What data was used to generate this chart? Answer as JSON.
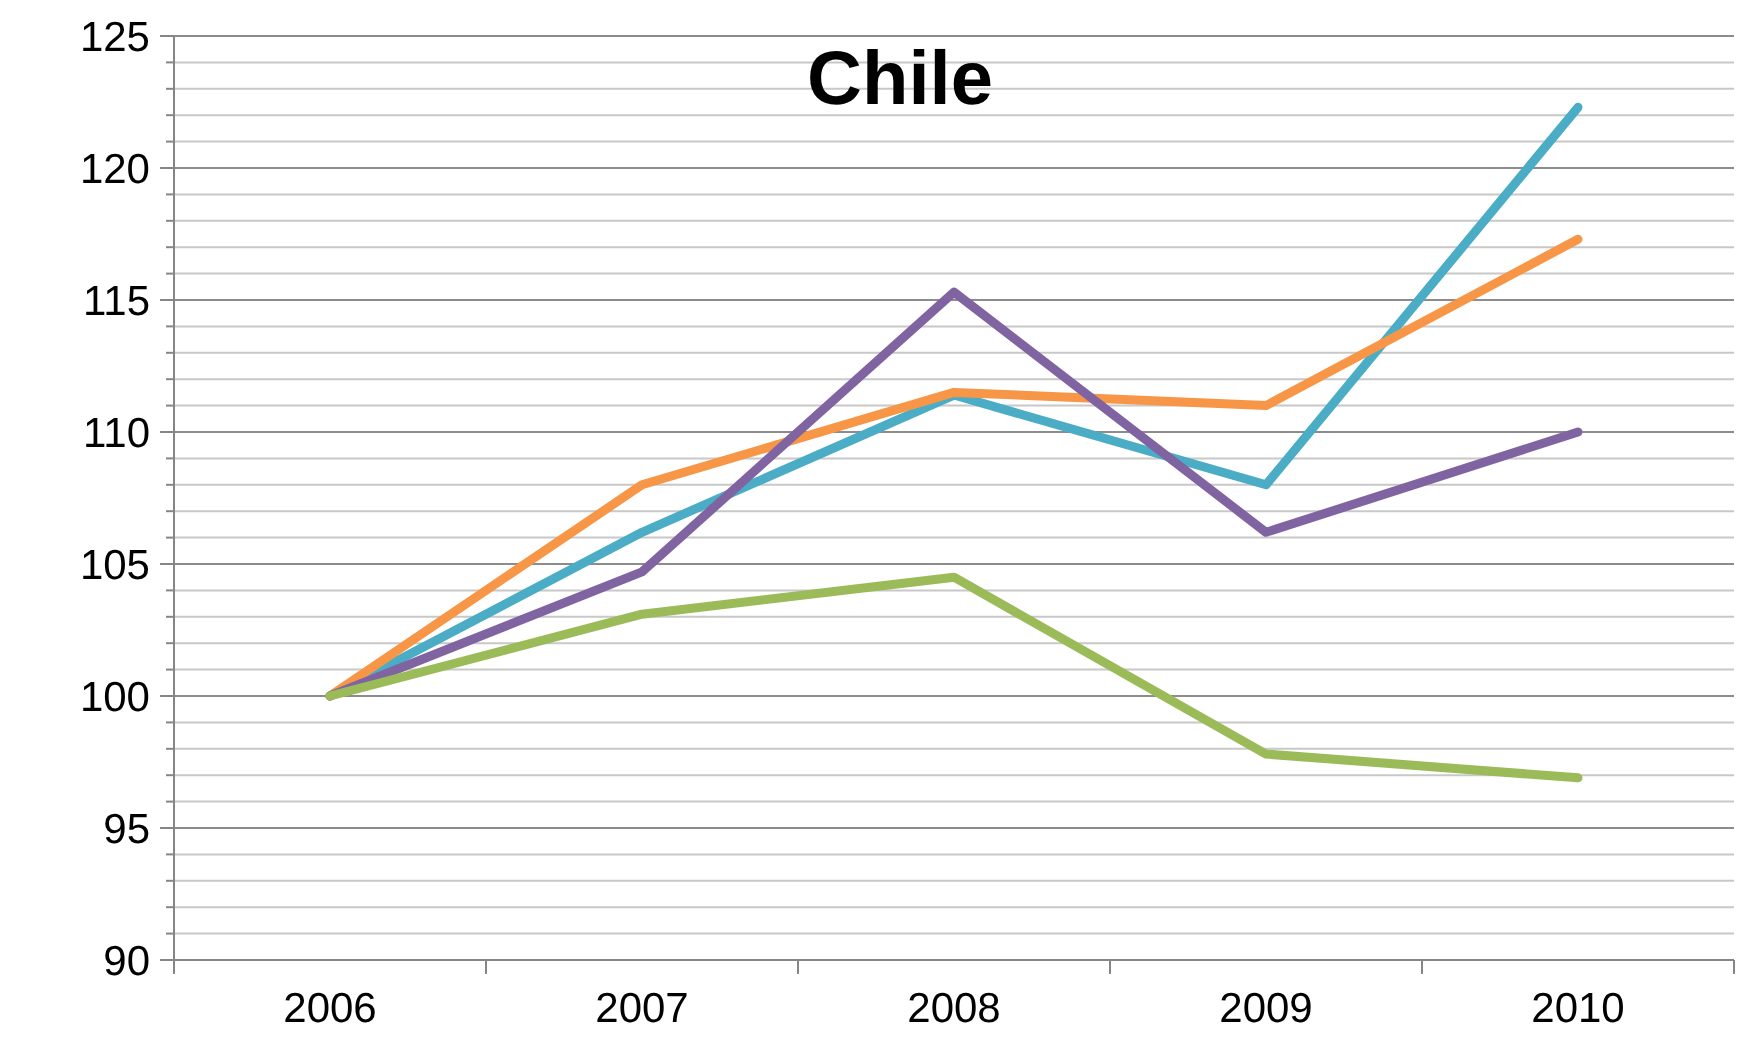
{
  "chart_data": {
    "type": "line",
    "title": "Chile",
    "categories": [
      "2006",
      "2007",
      "2008",
      "2009",
      "2010"
    ],
    "series": [
      {
        "color": "#4bacc6",
        "values": [
          100,
          106.2,
          111.4,
          108,
          122.3
        ]
      },
      {
        "color": "#f79646",
        "values": [
          100,
          108,
          111.5,
          111,
          117.3
        ]
      },
      {
        "color": "#8064a2",
        "values": [
          100,
          104.7,
          115.3,
          106.2,
          110
        ]
      },
      {
        "color": "#9bbb59",
        "values": [
          100,
          103.1,
          104.5,
          97.8,
          96.9
        ]
      }
    ],
    "ylim": [
      90,
      125
    ],
    "yticks": [
      90,
      {
        "value": 91,
        "label": null
      },
      {
        "value": 92,
        "label": null
      },
      {
        "value": 93,
        "label": null
      },
      {
        "value": 94,
        "label": null
      },
      95,
      {
        "value": 96,
        "label": null
      },
      {
        "value": 97,
        "label": null
      },
      {
        "value": 98,
        "label": null
      },
      {
        "value": 99,
        "label": null
      },
      100,
      {
        "value": 101,
        "label": null
      },
      {
        "value": 102,
        "label": null
      },
      {
        "value": 103,
        "label": null
      },
      {
        "value": 104,
        "label": null
      },
      105,
      {
        "value": 106,
        "label": null
      },
      {
        "value": 107,
        "label": null
      },
      {
        "value": 108,
        "label": null
      },
      {
        "value": 109,
        "label": null
      },
      110,
      {
        "value": 111,
        "label": null
      },
      {
        "value": 112,
        "label": null
      },
      {
        "value": 113,
        "label": null
      },
      {
        "value": 114,
        "label": null
      },
      115,
      {
        "value": 116,
        "label": null
      },
      {
        "value": 117,
        "label": null
      },
      {
        "value": 118,
        "label": null
      },
      {
        "value": 119,
        "label": null
      },
      120,
      {
        "value": 121,
        "label": null
      },
      {
        "value": 122,
        "label": null
      },
      {
        "value": 123,
        "label": null
      },
      {
        "value": 124,
        "label": null
      },
      125
    ],
    "grid": true,
    "marker": "none",
    "line_style": "solid"
  }
}
